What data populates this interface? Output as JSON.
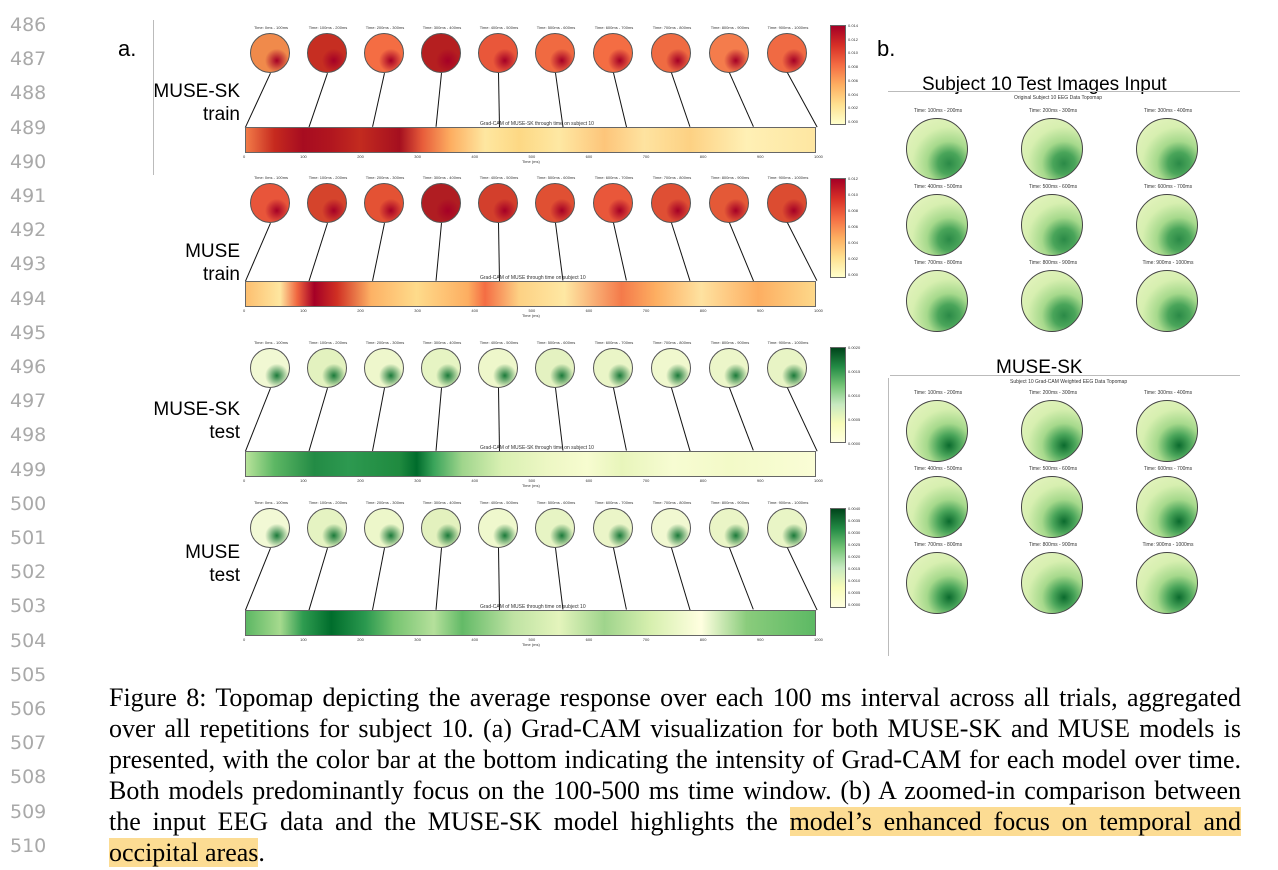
{
  "line_numbers": [
    "486",
    "487",
    "488",
    "489",
    "490",
    "491",
    "492",
    "493",
    "494",
    "495",
    "496",
    "497",
    "498",
    "499",
    "500",
    "501",
    "502",
    "503",
    "504",
    "505",
    "506",
    "507",
    "508",
    "509",
    "510"
  ],
  "panel_a": {
    "label": "a.",
    "time_titles": [
      "Time: 0ms - 100ms",
      "Time: 100ms - 200ms",
      "Time: 200ms - 300ms",
      "Time: 300ms - 400ms",
      "Time: 400ms - 500ms",
      "Time: 500ms - 600ms",
      "Time: 600ms - 700ms",
      "Time: 700ms - 800ms",
      "Time: 800ms - 900ms",
      "Time: 900ms - 1000ms"
    ],
    "time_ticks": [
      "0",
      "100",
      "200",
      "300",
      "400",
      "500",
      "600",
      "700",
      "800",
      "900",
      "1000"
    ],
    "rows": [
      {
        "label_line1": "MUSE-SK",
        "label_line2": "train",
        "bar_title": "Grad-CAM of MUSE-SK through time on subject 10",
        "xlabel": "Time (ms)",
        "cticks": [
          "0.014",
          "0.012",
          "0.010",
          "0.008",
          "0.006",
          "0.004",
          "0.002",
          "0.000"
        ]
      },
      {
        "label_line1": "MUSE",
        "label_line2": "train",
        "bar_title": "Grad-CAM of MUSE through time on subject 10",
        "xlabel": "Time (ms)",
        "cticks": [
          "0.012",
          "0.010",
          "0.008",
          "0.006",
          "0.004",
          "0.002",
          "0.000"
        ]
      },
      {
        "label_line1": "MUSE-SK",
        "label_line2": "test",
        "bar_title": "Grad-CAM of MUSE-SK through time on subject 10",
        "xlabel": "Time (ms)",
        "cticks": [
          "0.0020",
          "0.0015",
          "0.0010",
          "0.0005",
          "0.0000"
        ]
      },
      {
        "label_line1": "MUSE",
        "label_line2": "test",
        "bar_title": "Grad-CAM of MUSE through time on subject 10",
        "xlabel": "Time (ms)",
        "cticks": [
          "0.0040",
          "0.0035",
          "0.0030",
          "0.0025",
          "0.0020",
          "0.0015",
          "0.0010",
          "0.0005",
          "0.0000"
        ]
      }
    ]
  },
  "panel_b": {
    "label": "b.",
    "top_title": "Subject 10 Test Images Input",
    "top_subtitle": "Original Subject 10 EEG Data Topomap",
    "bottom_title": "MUSE-SK",
    "bottom_subtitle": "Subject 10 Grad-CAM Weighted EEG Data Topomap",
    "grid_titles": [
      "Time: 100ms - 200ms",
      "Time: 200ms - 300ms",
      "Time: 300ms - 400ms",
      "Time: 400ms - 500ms",
      "Time: 500ms - 600ms",
      "Time: 600ms - 700ms",
      "Time: 700ms - 800ms",
      "Time: 800ms - 900ms",
      "Time: 900ms - 1000ms"
    ]
  },
  "caption": {
    "part1": "Figure 8: Topomap depicting the average response over each 100 ms interval across all trials, aggregated over all repetitions for subject 10. (a) Grad-CAM visualization for both MUSE-SK and MUSE models is presented, with the color bar at the bottom indicating the intensity of Grad-CAM for each model over time. Both models predominantly focus on the 100-500 ms time window. (b) A zoomed-in comparison between the input EEG data and the MUSE-SK model highlights the ",
    "highlight": "model’s enhanced focus on temporal and occipital areas",
    "part3": "."
  },
  "colors": {
    "red_heat": "#d73027",
    "green_heat": "#1b7a3a",
    "highlight": "#fcdc93",
    "line_number_gray": "#a9a9a9"
  }
}
